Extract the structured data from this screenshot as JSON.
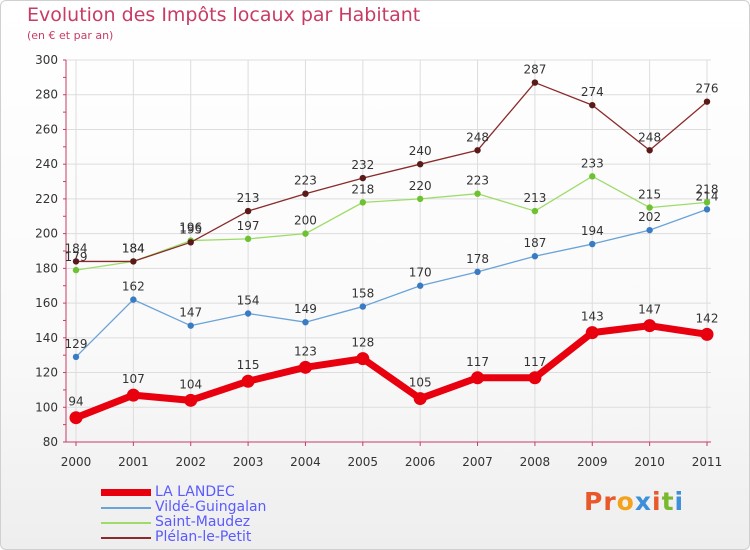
{
  "title": "Evolution des Impôts locaux par Habitant",
  "subtitle": "(en € et par an)",
  "logo_text": "Proxiti",
  "logo_colors": [
    "#e8582a",
    "#e8582a",
    "#f4a21a",
    "#3c8fd8",
    "#e8582a",
    "#7ab82e",
    "#3c8fd8"
  ],
  "chart_data": {
    "type": "line",
    "x": [
      "2000",
      "2001",
      "2002",
      "2003",
      "2004",
      "2005",
      "2006",
      "2007",
      "2008",
      "2009",
      "2010",
      "2011"
    ],
    "ylim": [
      80,
      300
    ],
    "yticks": [
      "80",
      "100",
      "120",
      "140",
      "160",
      "180",
      "200",
      "220",
      "240",
      "260",
      "280",
      "300"
    ],
    "grid": true,
    "legend_position": "bottom-left",
    "series": [
      {
        "name": "LA LANDEC",
        "color": "#e8000f",
        "marker_color": "#e8000f",
        "thick": true,
        "values": [
          94,
          107,
          104,
          115,
          123,
          128,
          105,
          117,
          117,
          143,
          147,
          142
        ],
        "labels": [
          "94",
          "107",
          "104",
          "115",
          "123",
          "128",
          "105",
          "117",
          "117",
          "143",
          "147",
          "142"
        ]
      },
      {
        "name": "Vildé-Guingalan",
        "color": "#6aa3d8",
        "marker_color": "#3a7cc4",
        "thick": false,
        "values": [
          129,
          162,
          147,
          154,
          149,
          158,
          170,
          178,
          187,
          194,
          202,
          214
        ],
        "labels": [
          "129",
          "162",
          "147",
          "154",
          "149",
          "158",
          "170",
          "178",
          "187",
          "194",
          "202",
          "214"
        ]
      },
      {
        "name": "Saint-Maudez",
        "color": "#9edc6a",
        "marker_color": "#6ec232",
        "thick": false,
        "values": [
          179,
          184,
          196,
          197,
          200,
          218,
          220,
          223,
          213,
          233,
          215,
          218
        ],
        "labels": [
          "179",
          "184",
          "196",
          "197",
          "200",
          "218",
          "220",
          "223",
          "213",
          "233",
          "215",
          "218"
        ]
      },
      {
        "name": "Plélan-le-Petit",
        "color": "#8a2a2a",
        "marker_color": "#5a1a1a",
        "thick": false,
        "values": [
          184,
          184,
          195,
          213,
          223,
          232,
          240,
          248,
          287,
          274,
          248,
          276
        ],
        "labels": [
          "184",
          "184",
          "195",
          "213",
          "223",
          "232",
          "240",
          "248",
          "287",
          "274",
          "248",
          "276"
        ]
      }
    ]
  }
}
